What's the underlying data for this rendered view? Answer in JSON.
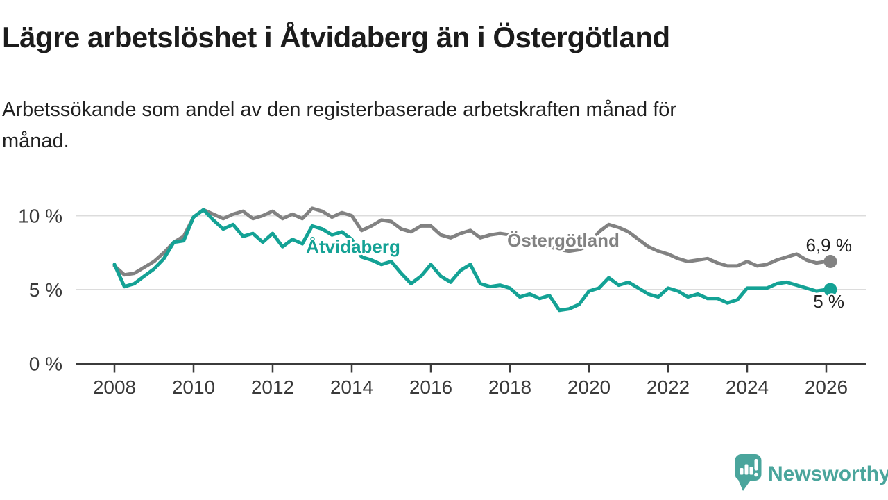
{
  "title": "Lägre arbetslöshet i Åtvidaberg än i Östergötland",
  "subtitle_lines": [
    "Arbetssökande som andel av den registerbaserade arbetskraften månad för",
    "månad."
  ],
  "footer": {
    "brand": "Newsworthy"
  },
  "colors": {
    "atvidaberg": "#14a295",
    "ostergotland": "#828282",
    "gridline": "#dcdcdc",
    "axis": "#3b3b3b",
    "brand_teal": "#4aa59c"
  },
  "chart_data": {
    "type": "line",
    "title": "Lägre arbetslöshet i Åtvidaberg än i Östergötland",
    "xlabel": "",
    "ylabel": "",
    "x_start": 2008.0,
    "x_step": 0.25,
    "xlim": [
      2008,
      2026.3
    ],
    "ylim": [
      0,
      11
    ],
    "grid": "horizontal",
    "legend_position": "inline-on-lines",
    "xticks": [
      2008,
      2010,
      2012,
      2014,
      2016,
      2018,
      2020,
      2022,
      2024,
      2026
    ],
    "yticks": [
      {
        "value": 0,
        "label": "0 %"
      },
      {
        "value": 5,
        "label": "5 %"
      },
      {
        "value": 10,
        "label": "10 %"
      }
    ],
    "ygrid": [
      5,
      10
    ],
    "series": [
      {
        "name": "Åtvidaberg",
        "color": "#14a295",
        "end_label": "5 %",
        "end_value": 5.0,
        "values": [
          6.7,
          5.2,
          5.4,
          5.9,
          6.4,
          7.1,
          8.2,
          8.3,
          9.9,
          10.4,
          9.7,
          9.1,
          9.4,
          8.6,
          8.8,
          8.2,
          8.8,
          7.9,
          8.4,
          8.1,
          9.3,
          9.1,
          8.7,
          8.9,
          8.4,
          7.2,
          7.0,
          6.7,
          6.9,
          6.1,
          5.4,
          5.9,
          6.7,
          5.9,
          5.5,
          6.3,
          6.7,
          5.4,
          5.2,
          5.3,
          5.1,
          4.5,
          4.7,
          4.4,
          4.6,
          3.6,
          3.7,
          4.0,
          4.9,
          5.1,
          5.8,
          5.3,
          5.5,
          5.1,
          4.7,
          4.5,
          5.1,
          4.9,
          4.5,
          4.7,
          4.4,
          4.4,
          4.1,
          4.3,
          5.1,
          5.1,
          5.1,
          5.4,
          5.5,
          5.3,
          5.1,
          4.9,
          5.0
        ]
      },
      {
        "name": "Östergötland",
        "color": "#828282",
        "end_label": "6,9 %",
        "end_value": 6.9,
        "values": [
          6.6,
          6.0,
          6.1,
          6.5,
          6.9,
          7.5,
          8.2,
          8.6,
          9.9,
          10.4,
          10.1,
          9.8,
          10.1,
          10.3,
          9.8,
          10.0,
          10.3,
          9.8,
          10.1,
          9.8,
          10.5,
          10.3,
          9.9,
          10.2,
          10.0,
          9.0,
          9.3,
          9.7,
          9.6,
          9.1,
          8.9,
          9.3,
          9.3,
          8.7,
          8.5,
          8.8,
          9.0,
          8.5,
          8.7,
          8.8,
          8.7,
          8.4,
          8.2,
          8.0,
          7.9,
          7.7,
          7.6,
          7.7,
          8.0,
          8.9,
          9.4,
          9.2,
          8.9,
          8.4,
          7.9,
          7.6,
          7.4,
          7.1,
          6.9,
          7.0,
          7.1,
          6.8,
          6.6,
          6.6,
          6.9,
          6.6,
          6.7,
          7.0,
          7.2,
          7.4,
          7.0,
          6.8,
          6.9
        ]
      }
    ]
  }
}
